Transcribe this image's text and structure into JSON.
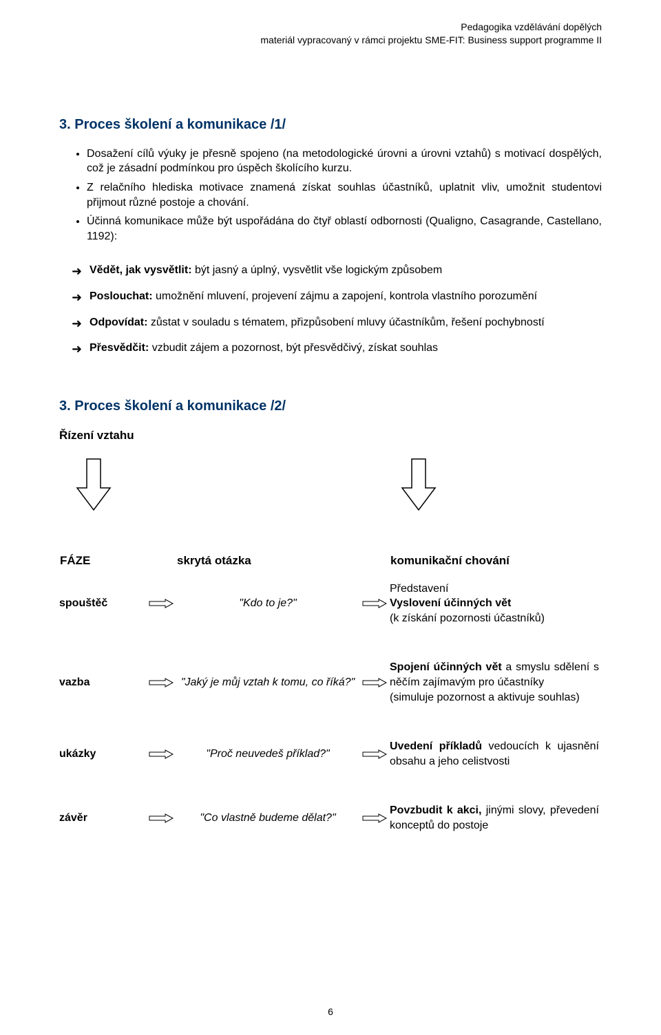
{
  "colors": {
    "heading": "#003366",
    "text": "#000000",
    "background": "#ffffff",
    "arrow_stroke": "#000000",
    "arrow_fill": "#ffffff"
  },
  "header": {
    "line1": "Pedagogika vzdělávání dopělých",
    "line2": "materiál vypracovaný v rámci projektu SME-FIT: Business support programme II"
  },
  "section1": {
    "heading": "3. Proces školení a komunikace /1/",
    "bullets": [
      "Dosažení cílů výuky je přesně spojeno (na metodologické úrovni a úrovni vztahů) s motivací dospělých, což je zásadní podmínkou pro úspěch školícího kurzu.",
      "Z relačního hlediska motivace znamená získat souhlas účastníků, uplatnit vliv, umožnit studentovi přijmout různé postoje a chování.",
      "Účinná komunikace může být uspořádána do čtyř oblastí odbornosti (Qualigno, Casagrande, Castellano, 1192):"
    ],
    "arrow_items": [
      {
        "bold": "Vědět, jak vysvětlit:",
        "rest": " být jasný a úplný, vysvětlit vše logickým způsobem"
      },
      {
        "bold": "Poslouchat:",
        "rest": " umožnění mluvení, projevení zájmu a zapojení, kontrola vlastního porozumění"
      },
      {
        "bold": "Odpovídat:",
        "rest": " zůstat v souladu s tématem, přizpůsobení mluvy účastníkům, řešení pochybností"
      },
      {
        "bold": "Přesvědčit:",
        "rest": " vzbudit zájem a pozornost, být přesvědčivý, získat souhlas"
      }
    ]
  },
  "section2": {
    "heading": "3. Proces školení a komunikace /2/",
    "subhead": "Řízení vztahu",
    "table_headers": {
      "phase": "FÁZE",
      "question": "skrytá otázka",
      "behavior": "komunikační chování"
    },
    "rows": [
      {
        "phase": "spouštěč",
        "question": "\"Kdo to je?\"",
        "behavior_html": "Představení<br><b>Vyslovení účinných vět</b><br>(k získání pozornosti účastníků)"
      },
      {
        "phase": "vazba",
        "question": "\"Jaký je můj vztah k tomu, co říká?\"",
        "behavior_html": "<b>Spojení účinných vět</b> a smyslu sdělení s něčím zajímavým pro účastníky<br>(simuluje pozornost a aktivuje souhlas)"
      },
      {
        "phase": "ukázky",
        "question": "\"Proč neuvedeš příklad?\"",
        "behavior_html": "<b>Uvedení příkladů</b> vedoucích k ujasnění obsahu a jeho celistvosti"
      },
      {
        "phase": "závěr",
        "question": "\"Co vlastně budeme dělat?\"",
        "behavior_html": "<b>Povzbudit k akci,</b> jinými slovy, převedení konceptů do postoje"
      }
    ]
  },
  "page_number": "6"
}
